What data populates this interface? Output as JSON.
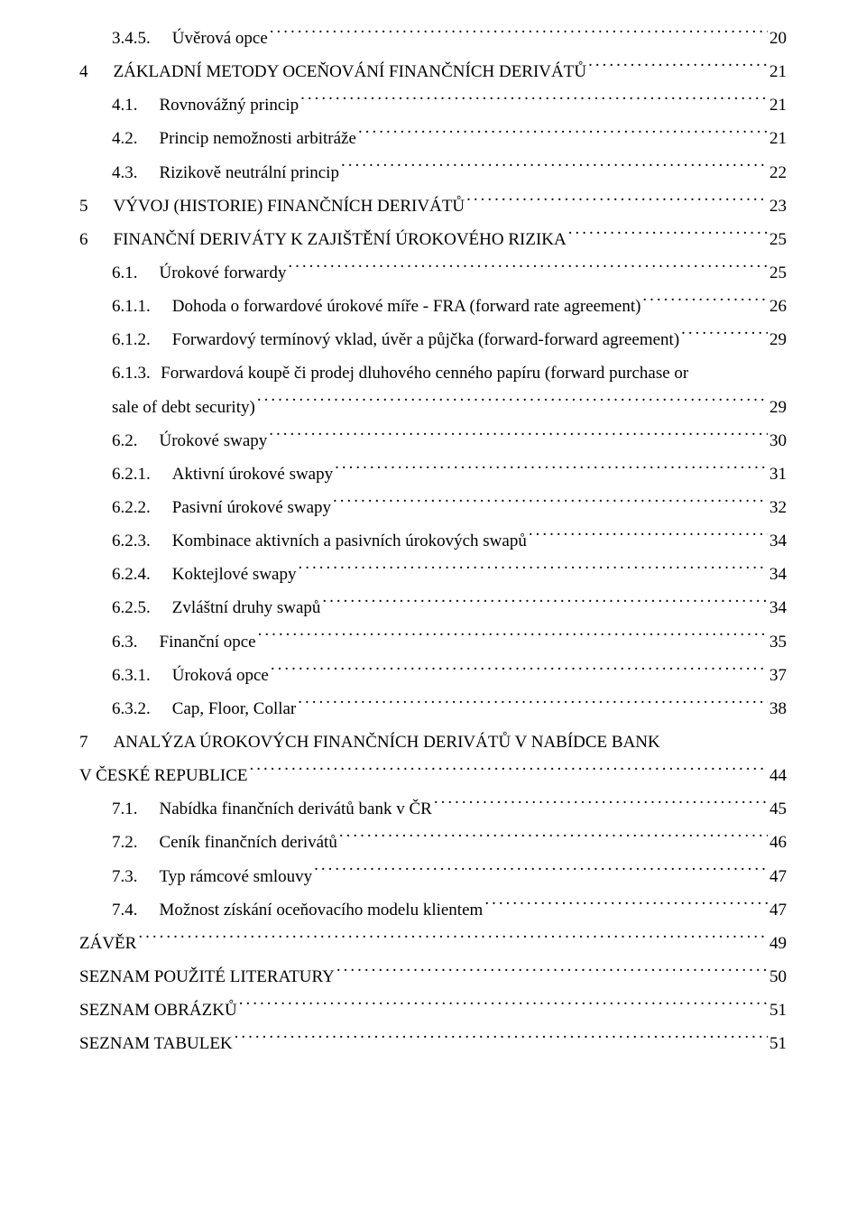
{
  "toc": [
    {
      "level": 1,
      "num": "3.4.5.",
      "label": "Úvěrová opce",
      "page": "20"
    },
    {
      "level": 0,
      "num": "4",
      "label": "ZÁKLADNÍ METODY OCEŇOVÁNÍ FINANČNÍCH DERIVÁTŮ",
      "page": "21"
    },
    {
      "level": 1,
      "num": "4.1.",
      "label": "Rovnovážný princip",
      "page": "21"
    },
    {
      "level": 1,
      "num": "4.2.",
      "label": "Princip nemožnosti arbitráže",
      "page": "21"
    },
    {
      "level": 1,
      "num": "4.3.",
      "label": "Rizikově neutrální princip",
      "page": "22"
    },
    {
      "level": 0,
      "num": "5",
      "label": "VÝVOJ (HISTORIE) FINANČNÍCH DERIVÁTŮ",
      "page": "23"
    },
    {
      "level": 0,
      "num": "6",
      "label": "FINANČNÍ DERIVÁTY K ZAJIŠTĚNÍ ÚROKOVÉHO RIZIKA",
      "page": "25"
    },
    {
      "level": 1,
      "num": "6.1.",
      "label": "Úrokové forwardy",
      "page": "25"
    },
    {
      "level": 2,
      "num": "6.1.1.",
      "label": "Dohoda o forwardové úrokové míře - FRA (forward rate agreement)",
      "page": "26"
    },
    {
      "level": 2,
      "num": "6.1.2.",
      "label": "Forwardový termínový vklad, úvěr a půjčka (forward-forward agreement)",
      "page": "29"
    },
    {
      "level": 2,
      "num": "6.1.3.",
      "label": "Forwardová koupě či prodej dluhového cenného papíru (forward purchase or",
      "wrap": "sale of debt security)",
      "page": "29"
    },
    {
      "level": 1,
      "num": "6.2.",
      "label": "Úrokové swapy",
      "page": "30"
    },
    {
      "level": 2,
      "num": "6.2.1.",
      "label": "Aktivní úrokové swapy",
      "page": "31"
    },
    {
      "level": 2,
      "num": "6.2.2.",
      "label": "Pasivní úrokové swapy",
      "page": "32"
    },
    {
      "level": 2,
      "num": "6.2.3.",
      "label": "Kombinace aktivních a pasivních úrokových swapů",
      "page": "34"
    },
    {
      "level": 2,
      "num": "6.2.4.",
      "label": "Koktejlové swapy",
      "page": "34"
    },
    {
      "level": 2,
      "num": "6.2.5.",
      "label": "Zvláštní druhy swapů",
      "page": "34"
    },
    {
      "level": 1,
      "num": "6.3.",
      "label": "Finanční opce",
      "page": "35"
    },
    {
      "level": 2,
      "num": "6.3.1.",
      "label": "Úroková opce",
      "page": "37"
    },
    {
      "level": 2,
      "num": "6.3.2.",
      "label": "Cap, Floor, Collar",
      "page": "38"
    },
    {
      "level": 0,
      "num": "7",
      "label": "ANALÝZA ÚROKOVÝCH FINANČNÍCH DERIVÁTŮ V NABÍDCE BANK",
      "wrap0": "V ČESKÉ REPUBLICE",
      "page": "44"
    },
    {
      "level": 1,
      "num": "7.1.",
      "label": "Nabídka finančních derivátů bank v ČR",
      "page": "45"
    },
    {
      "level": 1,
      "num": "7.2.",
      "label": "Ceník finančních derivátů",
      "page": "46"
    },
    {
      "level": 1,
      "num": "7.3.",
      "label": "Typ rámcové smlouvy",
      "page": "47"
    },
    {
      "level": 1,
      "num": "7.4.",
      "label": "Možnost získání oceňovacího modelu klientem",
      "page": "47"
    },
    {
      "level": 0,
      "num": "",
      "label": "ZÁVĚR",
      "page": "49"
    },
    {
      "level": 0,
      "num": "",
      "label": "SEZNAM POUŽITÉ LITERATURY",
      "page": "50"
    },
    {
      "level": 0,
      "num": "",
      "label": "SEZNAM OBRÁZKŮ",
      "page": "51"
    },
    {
      "level": 0,
      "num": "",
      "label": "SEZNAM TABULEK",
      "page": "51"
    }
  ]
}
